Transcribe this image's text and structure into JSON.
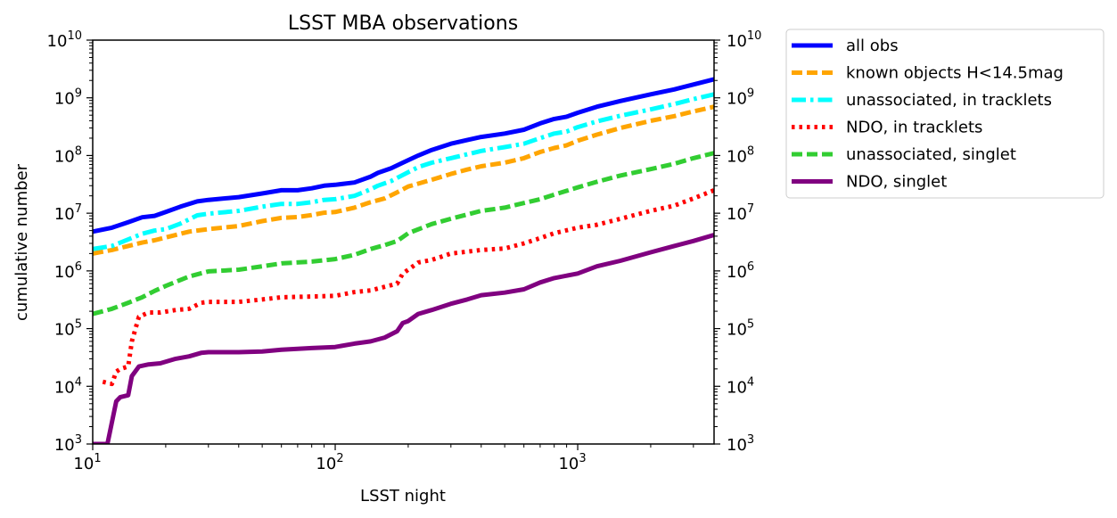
{
  "chart_data": {
    "type": "line",
    "title": "LSST MBA observations",
    "xlabel": "LSST night",
    "ylabel": "cumulative number",
    "xscale": "log",
    "yscale": "log",
    "xlim": [
      10,
      3650
    ],
    "ylim": [
      1000,
      10000000000
    ],
    "x_ticks": [
      {
        "value": 10,
        "base": "10",
        "exp": "1"
      },
      {
        "value": 100,
        "base": "10",
        "exp": "2"
      },
      {
        "value": 1000,
        "base": "10",
        "exp": "3"
      }
    ],
    "y_ticks": [
      {
        "value": 1000,
        "base": "10",
        "exp": "3"
      },
      {
        "value": 10000,
        "base": "10",
        "exp": "4"
      },
      {
        "value": 100000,
        "base": "10",
        "exp": "5"
      },
      {
        "value": 1000000,
        "base": "10",
        "exp": "6"
      },
      {
        "value": 10000000,
        "base": "10",
        "exp": "7"
      },
      {
        "value": 100000000,
        "base": "10",
        "exp": "8"
      },
      {
        "value": 1000000000,
        "base": "10",
        "exp": "9"
      },
      {
        "value": 10000000000,
        "base": "10",
        "exp": "10"
      }
    ],
    "secondary_y_axis": true,
    "grid": false,
    "legend_position": "outside-right-top",
    "series": [
      {
        "name": "all obs",
        "color": "#0000ff",
        "style": "solid",
        "points": [
          [
            10,
            4800000.0
          ],
          [
            12,
            5600000.0
          ],
          [
            14,
            7000000.0
          ],
          [
            16,
            8500000.0
          ],
          [
            18,
            9000000.0
          ],
          [
            20,
            10500000.0
          ],
          [
            23,
            13000000.0
          ],
          [
            27,
            16000000.0
          ],
          [
            30,
            17000000.0
          ],
          [
            40,
            19000000.0
          ],
          [
            50,
            22000000.0
          ],
          [
            60,
            25000000.0
          ],
          [
            70,
            25000000.0
          ],
          [
            80,
            27000000.0
          ],
          [
            90,
            30000000.0
          ],
          [
            100,
            31000000.0
          ],
          [
            120,
            34000000.0
          ],
          [
            140,
            43000000.0
          ],
          [
            150,
            50000000.0
          ],
          [
            170,
            60000000.0
          ],
          [
            190,
            75000000.0
          ],
          [
            220,
            100000000.0
          ],
          [
            250,
            125000000.0
          ],
          [
            300,
            160000000.0
          ],
          [
            350,
            185000000.0
          ],
          [
            400,
            210000000.0
          ],
          [
            500,
            240000000.0
          ],
          [
            600,
            280000000.0
          ],
          [
            700,
            360000000.0
          ],
          [
            800,
            430000000.0
          ],
          [
            900,
            470000000.0
          ],
          [
            1000,
            550000000.0
          ],
          [
            1200,
            700000000.0
          ],
          [
            1500,
            880000000.0
          ],
          [
            2000,
            1150000000.0
          ],
          [
            2500,
            1400000000.0
          ],
          [
            3000,
            1700000000.0
          ],
          [
            3650,
            2100000000.0
          ]
        ]
      },
      {
        "name": "known objects H<14.5mag",
        "color": "#ffa500",
        "style": "dashed",
        "points": [
          [
            10,
            2000000.0
          ],
          [
            12,
            2300000.0
          ],
          [
            14,
            2700000.0
          ],
          [
            16,
            3100000.0
          ],
          [
            18,
            3400000.0
          ],
          [
            20,
            3800000.0
          ],
          [
            25,
            4800000.0
          ],
          [
            30,
            5300000.0
          ],
          [
            40,
            6000000.0
          ],
          [
            50,
            7300000.0
          ],
          [
            60,
            8300000.0
          ],
          [
            70,
            8600000.0
          ],
          [
            80,
            9300000.0
          ],
          [
            90,
            10200000.0
          ],
          [
            100,
            10500000.0
          ],
          [
            120,
            12500000.0
          ],
          [
            140,
            15500000.0
          ],
          [
            160,
            18000000.0
          ],
          [
            180,
            23000000.0
          ],
          [
            200,
            29000000.0
          ],
          [
            250,
            38000000.0
          ],
          [
            300,
            48000000.0
          ],
          [
            350,
            57000000.0
          ],
          [
            400,
            65000000.0
          ],
          [
            500,
            75000000.0
          ],
          [
            600,
            90000000.0
          ],
          [
            700,
            115000000.0
          ],
          [
            800,
            135000000.0
          ],
          [
            900,
            150000000.0
          ],
          [
            1000,
            180000000.0
          ],
          [
            1200,
            230000000.0
          ],
          [
            1500,
            300000000.0
          ],
          [
            2000,
            400000000.0
          ],
          [
            2500,
            480000000.0
          ],
          [
            3000,
            580000000.0
          ],
          [
            3650,
            700000000.0
          ]
        ]
      },
      {
        "name": "unassociated, in tracklets",
        "color": "#00ffff",
        "style": "dashdot",
        "points": [
          [
            10,
            2400000.0
          ],
          [
            12,
            2700000.0
          ],
          [
            14,
            3500000.0
          ],
          [
            16,
            4400000.0
          ],
          [
            18,
            5000000.0
          ],
          [
            20,
            5300000.0
          ],
          [
            23,
            6600000.0
          ],
          [
            27,
            9200000.0
          ],
          [
            30,
            9800000.0
          ],
          [
            40,
            11000000.0
          ],
          [
            50,
            13000000.0
          ],
          [
            60,
            14500000.0
          ],
          [
            70,
            14500000.0
          ],
          [
            80,
            15500000.0
          ],
          [
            90,
            17000000.0
          ],
          [
            100,
            17500000.0
          ],
          [
            120,
            20000000.0
          ],
          [
            140,
            26000000.0
          ],
          [
            150,
            30000000.0
          ],
          [
            170,
            36000000.0
          ],
          [
            190,
            46000000.0
          ],
          [
            220,
            63000000.0
          ],
          [
            250,
            75000000.0
          ],
          [
            300,
            90000000.0
          ],
          [
            350,
            105000000.0
          ],
          [
            400,
            120000000.0
          ],
          [
            500,
            140000000.0
          ],
          [
            600,
            160000000.0
          ],
          [
            700,
            200000000.0
          ],
          [
            800,
            240000000.0
          ],
          [
            900,
            260000000.0
          ],
          [
            1000,
            310000000.0
          ],
          [
            1200,
            390000000.0
          ],
          [
            1500,
            490000000.0
          ],
          [
            2000,
            630000000.0
          ],
          [
            2500,
            780000000.0
          ],
          [
            3000,
            950000000.0
          ],
          [
            3650,
            1150000000.0
          ]
        ]
      },
      {
        "name": "NDO, in tracklets",
        "color": "#ff0000",
        "style": "dotted",
        "points": [
          [
            11,
            12000.0
          ],
          [
            12,
            11000.0
          ],
          [
            12.5,
            18000.0
          ],
          [
            13,
            20000.0
          ],
          [
            14,
            22000.0
          ],
          [
            14.5,
            60000.0
          ],
          [
            15.5,
            160000.0
          ],
          [
            17,
            190000.0
          ],
          [
            19,
            190000.0
          ],
          [
            22,
            210000.0
          ],
          [
            25,
            220000.0
          ],
          [
            28,
            280000.0
          ],
          [
            30,
            290000.0
          ],
          [
            40,
            290000.0
          ],
          [
            50,
            320000.0
          ],
          [
            60,
            350000.0
          ],
          [
            80,
            360000.0
          ],
          [
            100,
            370000.0
          ],
          [
            120,
            430000.0
          ],
          [
            140,
            460000.0
          ],
          [
            160,
            530000.0
          ],
          [
            180,
            600000.0
          ],
          [
            190,
            900000.0
          ],
          [
            200,
            1050000.0
          ],
          [
            220,
            1400000.0
          ],
          [
            250,
            1550000.0
          ],
          [
            300,
            2000000.0
          ],
          [
            400,
            2300000.0
          ],
          [
            500,
            2450000.0
          ],
          [
            600,
            3000000.0
          ],
          [
            700,
            3700000.0
          ],
          [
            800,
            4500000.0
          ],
          [
            1000,
            5600000.0
          ],
          [
            1200,
            6300000.0
          ],
          [
            1500,
            8000000.0
          ],
          [
            2000,
            11000000.0
          ],
          [
            2500,
            13500000.0
          ],
          [
            3000,
            18000000.0
          ],
          [
            3650,
            25000000.0
          ]
        ]
      },
      {
        "name": "unassociated, singlet",
        "color": "#32cd32",
        "style": "dashed",
        "points": [
          [
            10,
            180000.0
          ],
          [
            12,
            220000.0
          ],
          [
            14,
            280000.0
          ],
          [
            16,
            350000.0
          ],
          [
            18,
            450000.0
          ],
          [
            20,
            550000.0
          ],
          [
            25,
            800000.0
          ],
          [
            30,
            980000.0
          ],
          [
            40,
            1050000.0
          ],
          [
            50,
            1200000.0
          ],
          [
            60,
            1350000.0
          ],
          [
            80,
            1450000.0
          ],
          [
            100,
            1600000.0
          ],
          [
            120,
            1900000.0
          ],
          [
            140,
            2400000.0
          ],
          [
            160,
            2800000.0
          ],
          [
            180,
            3300000.0
          ],
          [
            200,
            4500000.0
          ],
          [
            250,
            6500000.0
          ],
          [
            300,
            8000000.0
          ],
          [
            350,
            9500000.0
          ],
          [
            400,
            11000000.0
          ],
          [
            500,
            12500000.0
          ],
          [
            600,
            15000000.0
          ],
          [
            700,
            17500000.0
          ],
          [
            800,
            21000000.0
          ],
          [
            1000,
            28000000.0
          ],
          [
            1200,
            35000000.0
          ],
          [
            1500,
            45000000.0
          ],
          [
            2000,
            58000000.0
          ],
          [
            2500,
            72000000.0
          ],
          [
            3000,
            90000000.0
          ],
          [
            3650,
            110000000.0
          ]
        ]
      },
      {
        "name": "NDO, singlet",
        "color": "#800080",
        "style": "solid",
        "points": [
          [
            10,
            1000
          ],
          [
            11.5,
            1000
          ],
          [
            12.5,
            5500
          ],
          [
            13,
            6500
          ],
          [
            14,
            7000
          ],
          [
            14.5,
            15000.0
          ],
          [
            15.5,
            22000.0
          ],
          [
            17,
            24000.0
          ],
          [
            19,
            25000.0
          ],
          [
            22,
            30000.0
          ],
          [
            25,
            33000.0
          ],
          [
            28,
            38000.0
          ],
          [
            30,
            39000.0
          ],
          [
            40,
            39000.0
          ],
          [
            50,
            40000.0
          ],
          [
            60,
            43000.0
          ],
          [
            80,
            46000.0
          ],
          [
            100,
            48000.0
          ],
          [
            120,
            55000.0
          ],
          [
            140,
            60000.0
          ],
          [
            160,
            70000.0
          ],
          [
            180,
            90000.0
          ],
          [
            190,
            125000.0
          ],
          [
            200,
            135000.0
          ],
          [
            220,
            180000.0
          ],
          [
            250,
            210000.0
          ],
          [
            300,
            270000.0
          ],
          [
            350,
            320000.0
          ],
          [
            400,
            380000.0
          ],
          [
            500,
            420000.0
          ],
          [
            600,
            480000.0
          ],
          [
            700,
            630000.0
          ],
          [
            800,
            750000.0
          ],
          [
            1000,
            900000.0
          ],
          [
            1200,
            1200000.0
          ],
          [
            1500,
            1500000.0
          ],
          [
            2000,
            2100000.0
          ],
          [
            2500,
            2700000.0
          ],
          [
            3000,
            3300000.0
          ],
          [
            3650,
            4200000.0
          ]
        ]
      }
    ]
  }
}
